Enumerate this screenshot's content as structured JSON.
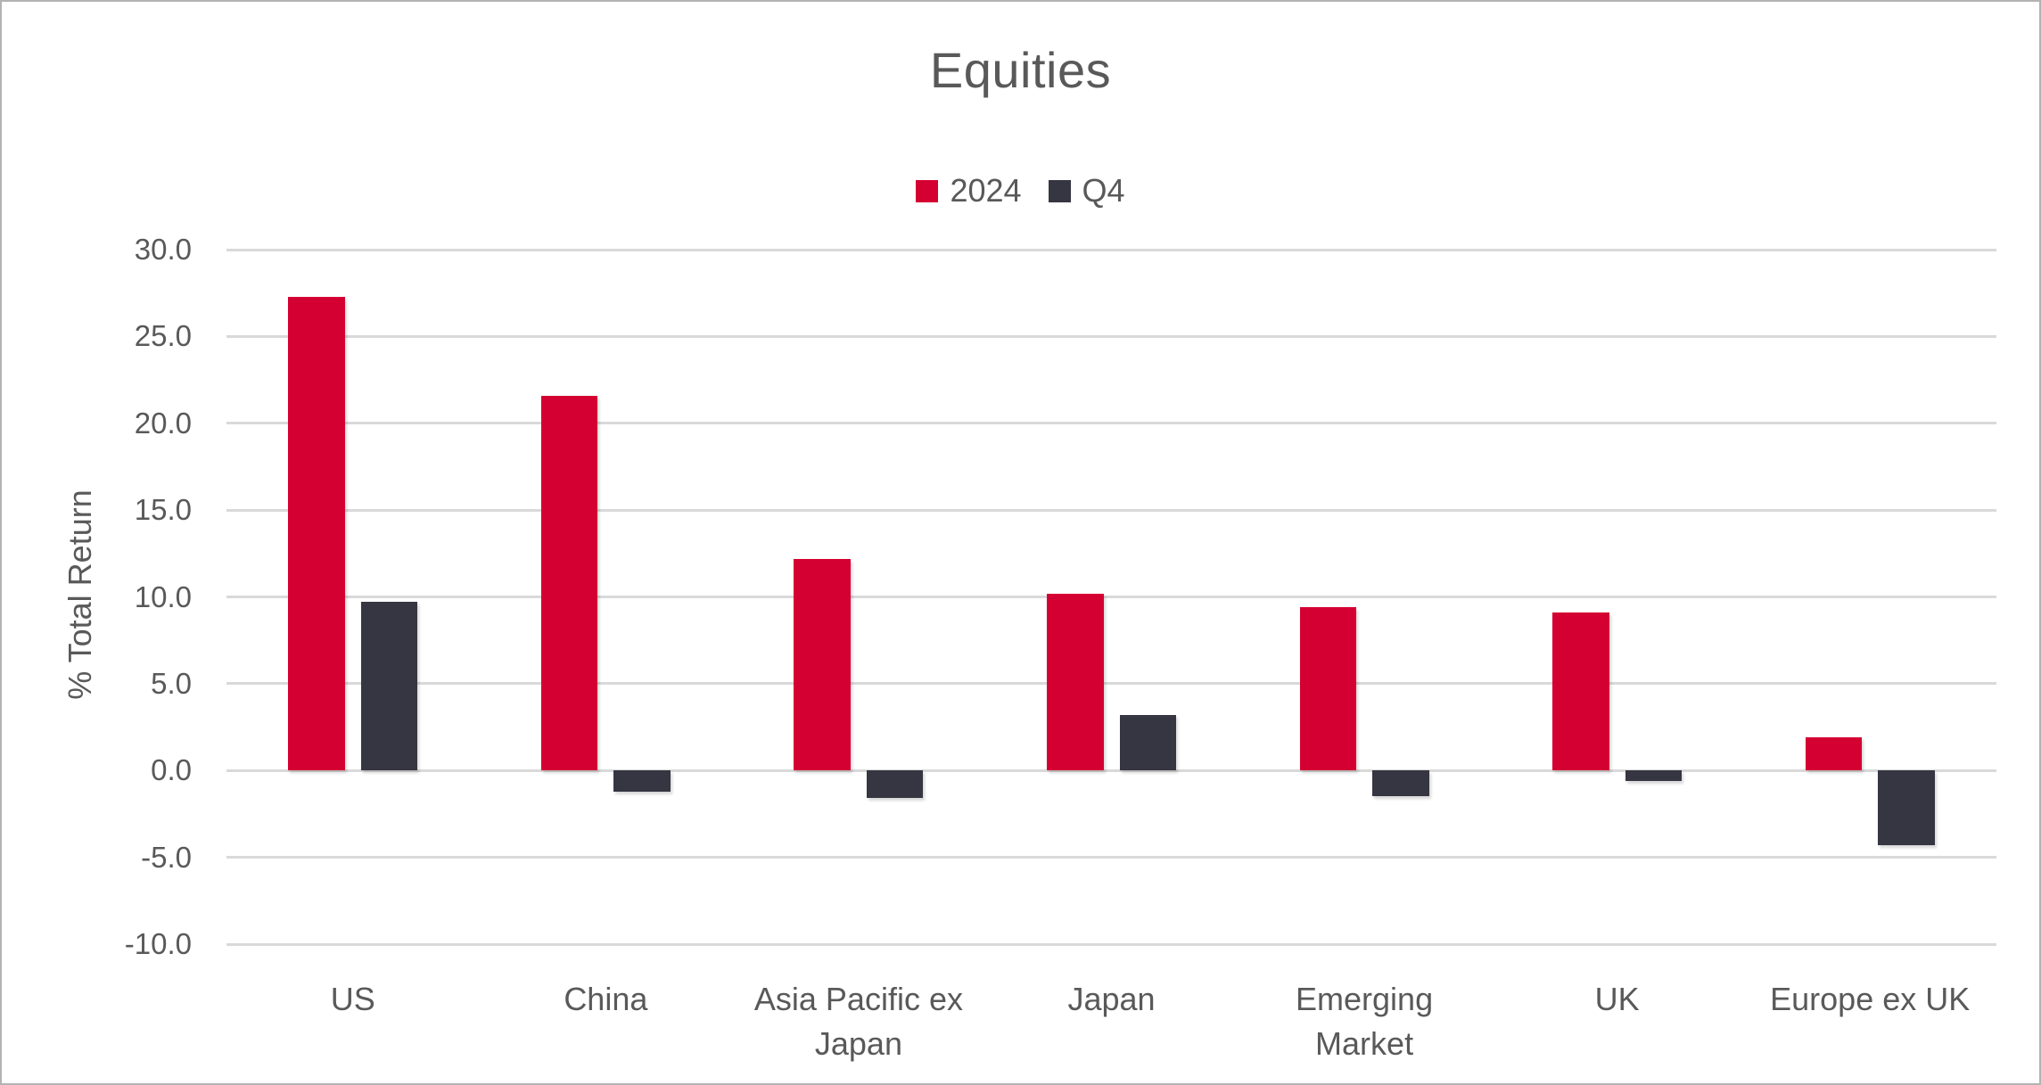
{
  "chart_data": {
    "type": "bar",
    "title": "Equities",
    "ylabel": "% Total Return",
    "categories": [
      "US",
      "China",
      "Asia Pacific ex Japan",
      "Japan",
      "Emerging Market",
      "UK",
      "Europe ex UK"
    ],
    "category_lines": [
      [
        "US"
      ],
      [
        "China"
      ],
      [
        "Asia Pacific ex",
        "Japan"
      ],
      [
        "Japan"
      ],
      [
        "Emerging",
        "Market"
      ],
      [
        "UK"
      ],
      [
        "Europe ex UK"
      ]
    ],
    "series": [
      {
        "name": "2024",
        "color": "#d40032",
        "values": [
          27.3,
          21.6,
          12.2,
          10.2,
          9.4,
          9.1,
          1.9
        ]
      },
      {
        "name": "Q4",
        "color": "#363642",
        "values": [
          9.7,
          -1.2,
          -1.6,
          3.2,
          -1.5,
          -0.6,
          -4.3
        ]
      }
    ],
    "ylim": [
      -10,
      30
    ],
    "ytick_step": 5,
    "ytick_labels": [
      "30.0",
      "25.0",
      "20.0",
      "15.0",
      "10.0",
      "5.0",
      "0.0",
      "-5.0",
      "-10.0"
    ],
    "grid": true,
    "legend_position": "top",
    "colors": {
      "text": "#595959",
      "gridline": "#d9d9d9"
    }
  }
}
